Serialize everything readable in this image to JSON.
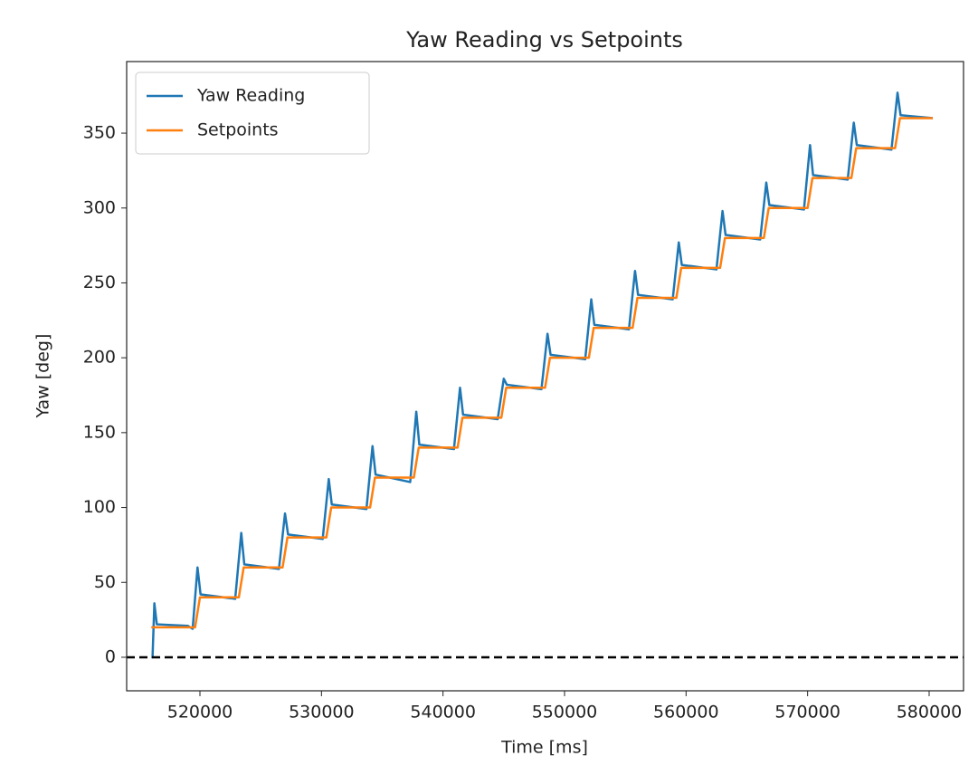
{
  "chart_data": {
    "type": "line",
    "title": "Yaw Reading vs Setpoints",
    "x_label": "Time [ms]",
    "y_label": "Yaw [deg]",
    "series": [
      {
        "name": "Yaw Reading",
        "color": "#1f77b4",
        "x": [
          516000,
          516100,
          516250,
          516450,
          519000,
          519400,
          519800,
          520050,
          522900,
          523400,
          523650,
          526500,
          527000,
          527250,
          530100,
          530600,
          530850,
          533700,
          534200,
          534450,
          537300,
          537800,
          538050,
          540900,
          541400,
          541650,
          544500,
          545000,
          545250,
          548100,
          548600,
          548850,
          551700,
          552200,
          552450,
          555300,
          555800,
          556050,
          558900,
          559400,
          559650,
          562500,
          563000,
          563250,
          566100,
          566600,
          566850,
          569700,
          570200,
          570450,
          573300,
          573800,
          574050,
          576900,
          577400,
          577650,
          580300
        ],
        "values": [
          0,
          0,
          36,
          22,
          21,
          19,
          60,
          42,
          39,
          83,
          62,
          59,
          96,
          82,
          79,
          119,
          102,
          99,
          141,
          122,
          117,
          164,
          142,
          139,
          180,
          162,
          159,
          186,
          182,
          179,
          216,
          202,
          199,
          239,
          222,
          219,
          258,
          242,
          239,
          277,
          262,
          259,
          298,
          282,
          279,
          317,
          302,
          299,
          342,
          322,
          319,
          357,
          342,
          339,
          377,
          362,
          360
        ]
      },
      {
        "name": "Setpoints",
        "color": "#ff7f0e",
        "x": [
          516000,
          519600,
          520000,
          523200,
          523600,
          526800,
          527200,
          530400,
          530800,
          534000,
          534400,
          537600,
          538000,
          541200,
          541600,
          544800,
          545200,
          548400,
          548800,
          552000,
          552400,
          555600,
          556000,
          559200,
          559600,
          562800,
          563200,
          566400,
          566800,
          570000,
          570400,
          573600,
          574000,
          577200,
          577600,
          580300
        ],
        "values": [
          20,
          20,
          40,
          40,
          60,
          60,
          80,
          80,
          100,
          100,
          120,
          120,
          140,
          140,
          160,
          160,
          180,
          180,
          200,
          200,
          220,
          220,
          240,
          240,
          260,
          260,
          280,
          280,
          300,
          300,
          320,
          320,
          340,
          340,
          360,
          360
        ]
      }
    ],
    "hline": 0,
    "xlim": [
      513970,
      582830
    ],
    "ylim": [
      -22.4,
      397.8
    ],
    "xticks": [
      520000,
      530000,
      540000,
      550000,
      560000,
      570000,
      580000
    ],
    "yticks": [
      0,
      50,
      100,
      150,
      200,
      250,
      300,
      350
    ],
    "legend": "upper left"
  }
}
